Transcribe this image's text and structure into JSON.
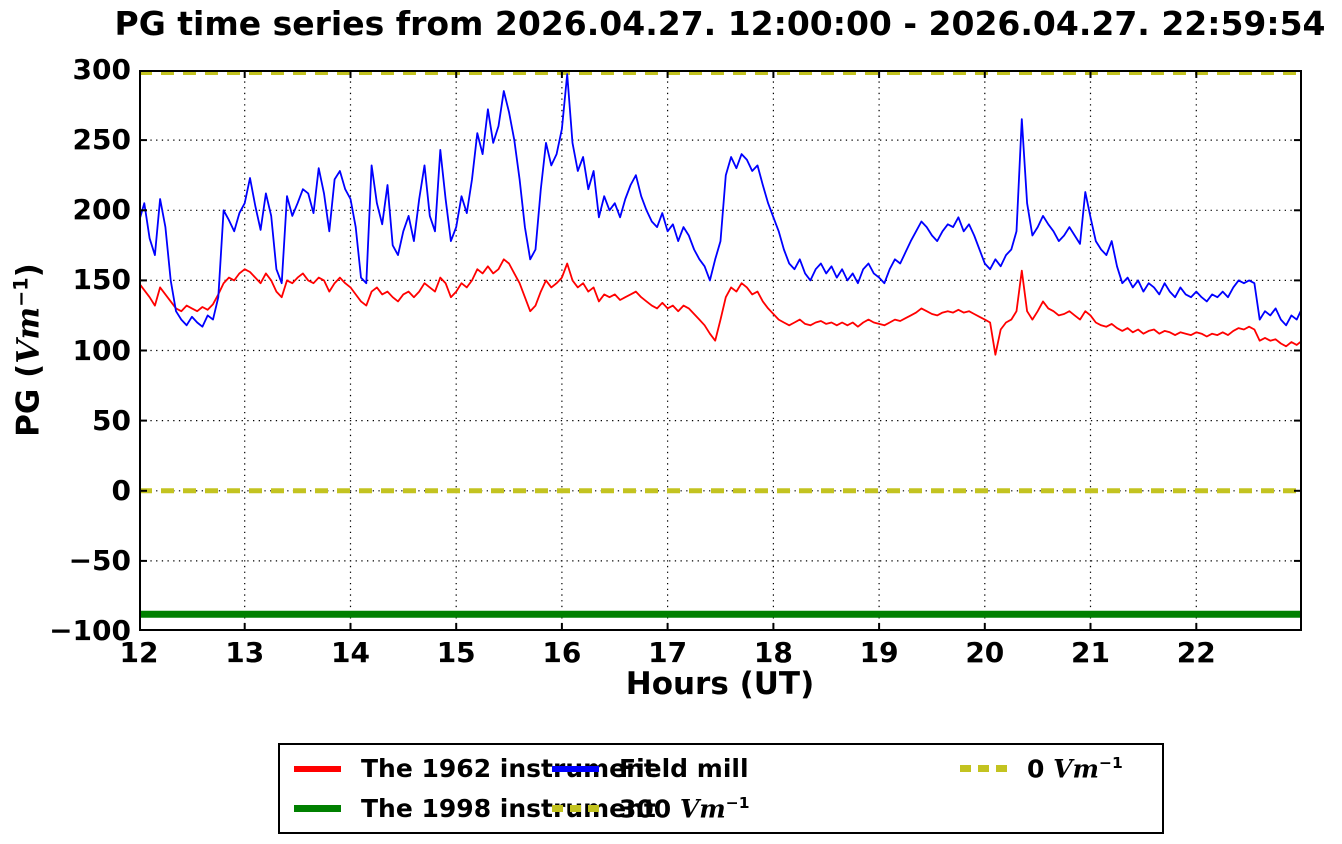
{
  "title": "PG time series from 2026.04.27. 12:00:00 - 2026.04.27. 22:59:54",
  "axes": {
    "xlabel": "Hours (UT)",
    "ylabel": {
      "prefix": "PG (",
      "math": "Vm",
      "sup": "−1",
      "suffix": ")"
    }
  },
  "legend": {
    "entries": [
      {
        "label": "The 1962 instrument",
        "math": "",
        "sup": "",
        "color": "#ff0000",
        "style": "solid",
        "swatch_height": 6
      },
      {
        "label": "The 1998 instrument",
        "math": "",
        "sup": "",
        "color": "#008000",
        "style": "solid",
        "swatch_height": 7
      },
      {
        "label": "Field mill",
        "math": "",
        "sup": "",
        "color": "#0000ff",
        "style": "solid",
        "swatch_height": 6
      },
      {
        "label": "300 ",
        "math": "Vm",
        "sup": "−1",
        "color": "#c3c320",
        "style": "dashed",
        "swatch_height": 7
      },
      {
        "label": "0 ",
        "math": "Vm",
        "sup": "−1",
        "color": "#c3c320",
        "style": "dashed",
        "swatch_height": 7
      }
    ]
  },
  "chart_data": {
    "type": "line",
    "title": "PG time series from 2026.04.27. 12:00:00 - 2026.04.27. 22:59:54",
    "xlabel": "Hours (UT)",
    "ylabel": "PG (Vm^-1)",
    "xlim": [
      12,
      23
    ],
    "ylim": [
      -100,
      300
    ],
    "xticks": [
      12,
      13,
      14,
      15,
      16,
      17,
      18,
      19,
      20,
      21,
      22
    ],
    "xticklabels": [
      "12",
      "13",
      "14",
      "15",
      "16",
      "17",
      "18",
      "19",
      "20",
      "21",
      "22"
    ],
    "yticks": [
      -100,
      -50,
      0,
      50,
      100,
      150,
      200,
      250,
      300
    ],
    "yticklabels": [
      "−100",
      "−50",
      "0",
      "50",
      "100",
      "150",
      "200",
      "250",
      "300"
    ],
    "grid": true,
    "x_start": 12,
    "x_step": 0.05,
    "series": [
      {
        "name": "The 1998 instrument",
        "color": "#008000",
        "type": "hline",
        "linewidth": 7,
        "value": -88
      },
      {
        "name": "300 Vm^-1",
        "color": "#c3c320",
        "type": "hline",
        "linewidth": 5,
        "dash": [
          13,
          9
        ],
        "value": 300
      },
      {
        "name": "0 Vm^-1",
        "color": "#c3c320",
        "type": "hline",
        "linewidth": 5,
        "dash": [
          13,
          9
        ],
        "value": 0
      },
      {
        "name": "The 1962 instrument",
        "color": "#ff0000",
        "type": "line",
        "linewidth": 1.8,
        "values": [
          148,
          143,
          138,
          132,
          145,
          140,
          135,
          130,
          128,
          132,
          130,
          128,
          131,
          129,
          133,
          140,
          148,
          152,
          150,
          155,
          158,
          156,
          152,
          148,
          155,
          150,
          142,
          138,
          150,
          148,
          152,
          155,
          150,
          148,
          152,
          150,
          142,
          148,
          152,
          148,
          145,
          140,
          135,
          132,
          142,
          145,
          140,
          142,
          138,
          135,
          140,
          142,
          138,
          142,
          148,
          145,
          142,
          152,
          148,
          138,
          142,
          148,
          145,
          150,
          158,
          155,
          160,
          155,
          158,
          165,
          162,
          155,
          148,
          138,
          128,
          132,
          142,
          150,
          145,
          148,
          152,
          162,
          150,
          145,
          148,
          142,
          145,
          135,
          140,
          138,
          140,
          136,
          138,
          140,
          142,
          138,
          135,
          132,
          130,
          134,
          130,
          132,
          128,
          132,
          130,
          126,
          122,
          118,
          112,
          107,
          122,
          138,
          145,
          142,
          148,
          145,
          140,
          142,
          135,
          130,
          126,
          122,
          120,
          118,
          120,
          122,
          119,
          118,
          120,
          121,
          119,
          120,
          118,
          120,
          118,
          120,
          117,
          120,
          122,
          120,
          119,
          118,
          120,
          122,
          121,
          123,
          125,
          127,
          130,
          128,
          126,
          125,
          127,
          128,
          127,
          129,
          127,
          128,
          126,
          124,
          122,
          120,
          97,
          115,
          120,
          122,
          128,
          157,
          128,
          122,
          128,
          135,
          130,
          128,
          125,
          126,
          128,
          125,
          122,
          128,
          125,
          120,
          118,
          117,
          119,
          116,
          114,
          116,
          113,
          115,
          112,
          114,
          115,
          112,
          114,
          113,
          111,
          113,
          112,
          111,
          113,
          112,
          110,
          112,
          111,
          113,
          111,
          114,
          116,
          115,
          117,
          115,
          107,
          109,
          107,
          108,
          105,
          103,
          106,
          104,
          107
        ]
      },
      {
        "name": "Field mill",
        "color": "#0000ff",
        "type": "line",
        "linewidth": 1.8,
        "values": [
          192,
          205,
          180,
          168,
          208,
          188,
          150,
          128,
          122,
          118,
          124,
          120,
          117,
          125,
          122,
          138,
          200,
          193,
          185,
          198,
          205,
          223,
          203,
          186,
          212,
          196,
          158,
          148,
          210,
          196,
          205,
          215,
          212,
          198,
          230,
          212,
          185,
          222,
          228,
          215,
          208,
          188,
          152,
          148,
          232,
          205,
          190,
          218,
          175,
          168,
          185,
          196,
          178,
          208,
          232,
          196,
          185,
          243,
          208,
          178,
          188,
          210,
          198,
          222,
          255,
          240,
          272,
          248,
          260,
          285,
          270,
          250,
          222,
          188,
          165,
          172,
          215,
          248,
          232,
          240,
          258,
          297,
          248,
          228,
          238,
          215,
          228,
          195,
          210,
          200,
          205,
          195,
          208,
          218,
          225,
          210,
          200,
          192,
          188,
          198,
          185,
          190,
          178,
          188,
          182,
          172,
          165,
          160,
          150,
          165,
          178,
          225,
          238,
          230,
          240,
          236,
          228,
          232,
          218,
          205,
          195,
          185,
          172,
          162,
          158,
          165,
          155,
          150,
          158,
          162,
          155,
          160,
          152,
          158,
          150,
          155,
          148,
          158,
          162,
          155,
          152,
          148,
          158,
          165,
          162,
          170,
          178,
          185,
          192,
          188,
          182,
          178,
          185,
          190,
          188,
          195,
          185,
          190,
          182,
          172,
          162,
          158,
          165,
          160,
          168,
          172,
          185,
          265,
          205,
          182,
          188,
          196,
          190,
          185,
          178,
          182,
          188,
          182,
          176,
          213,
          195,
          178,
          172,
          168,
          178,
          160,
          148,
          152,
          145,
          150,
          142,
          148,
          145,
          140,
          148,
          142,
          138,
          145,
          140,
          138,
          142,
          138,
          135,
          140,
          138,
          142,
          138,
          145,
          150,
          148,
          150,
          148,
          122,
          128,
          125,
          130,
          122,
          118,
          125,
          122,
          130
        ]
      }
    ]
  }
}
